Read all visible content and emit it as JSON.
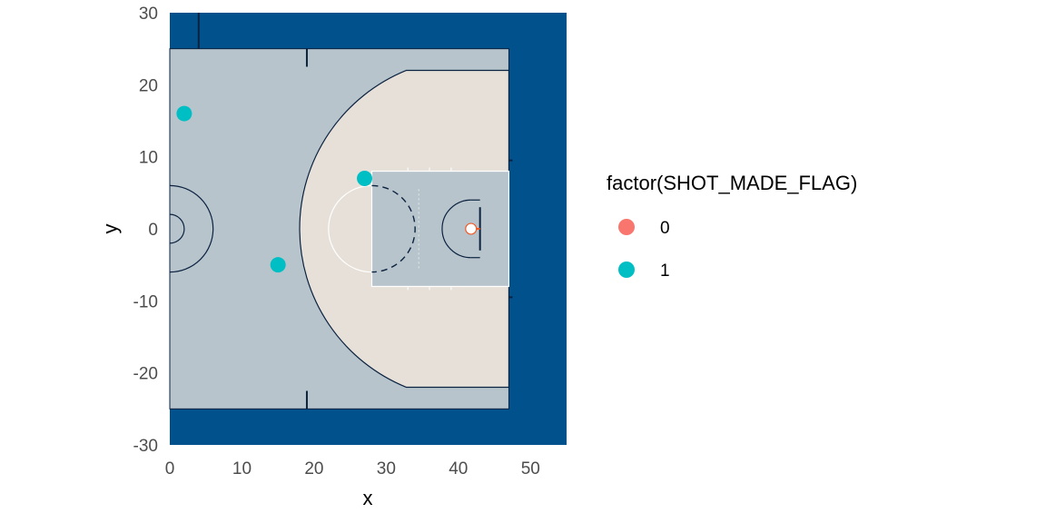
{
  "chart_data": {
    "type": "scatter",
    "title": "",
    "xlabel": "x",
    "ylabel": "y",
    "xlim": [
      0,
      55
    ],
    "ylim": [
      -30,
      30
    ],
    "x_ticks": [
      0,
      10,
      20,
      30,
      40,
      50
    ],
    "y_ticks": [
      -30,
      -20,
      -10,
      0,
      10,
      20,
      30
    ],
    "x_tick_labels": [
      "0",
      "10",
      "20",
      "30",
      "40",
      "50"
    ],
    "y_tick_labels": [
      "-30",
      "-20",
      "-10",
      "0",
      "10",
      "20",
      "30"
    ],
    "grid": false,
    "background": "basketball half court",
    "legend": {
      "title": "factor(SHOT_MADE_FLAG)",
      "position": "right",
      "entries": [
        {
          "label": "0",
          "color": "#F8766D"
        },
        {
          "label": "1",
          "color": "#00BFC4"
        }
      ]
    },
    "series": [
      {
        "name": "0",
        "color": "#F8766D",
        "points": []
      },
      {
        "name": "1",
        "color": "#00BFC4",
        "points": [
          {
            "x": 2,
            "y": 16
          },
          {
            "x": 27,
            "y": 7
          },
          {
            "x": 15,
            "y": -5
          }
        ]
      }
    ]
  },
  "colors": {
    "court_outer": "#00518C",
    "court_inner": "#B8C4CC",
    "three_point_area": "#E6E0D8",
    "lines": "#0B2240",
    "paint_lines": "#FFFFFF",
    "rim": "#F05A28"
  }
}
